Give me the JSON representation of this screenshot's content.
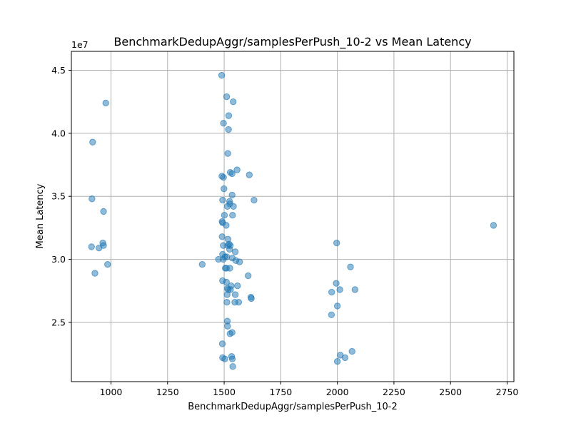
{
  "chart_data": {
    "type": "scatter",
    "title": "BenchmarkDedupAggr/samplesPerPush_10-2 vs Mean Latency",
    "xlabel": "BenchmarkDedupAggr/samplesPerPush_10-2",
    "ylabel": "Mean Latency",
    "y_offset_label": "1e7",
    "xlim": [
      825,
      2780
    ],
    "ylim": [
      20300000,
      46500000
    ],
    "xticks": [
      1000,
      1250,
      1500,
      1750,
      2000,
      2250,
      2500,
      2750
    ],
    "yticks": [
      25000000,
      30000000,
      35000000,
      40000000,
      45000000
    ],
    "ytick_labels": [
      "2.5",
      "3.0",
      "3.5",
      "4.0",
      "4.5"
    ],
    "grid": true,
    "color": "#1f77b4",
    "points": [
      {
        "x": 977,
        "y": 42400000
      },
      {
        "x": 919,
        "y": 39300000
      },
      {
        "x": 916,
        "y": 34800000
      },
      {
        "x": 967,
        "y": 33800000
      },
      {
        "x": 964,
        "y": 31300000
      },
      {
        "x": 967,
        "y": 31100000
      },
      {
        "x": 914,
        "y": 31000000
      },
      {
        "x": 947,
        "y": 30900000
      },
      {
        "x": 985,
        "y": 29600000
      },
      {
        "x": 929,
        "y": 28900000
      },
      {
        "x": 1489,
        "y": 44600000
      },
      {
        "x": 1511,
        "y": 42900000
      },
      {
        "x": 1540,
        "y": 42500000
      },
      {
        "x": 1520,
        "y": 41400000
      },
      {
        "x": 1497,
        "y": 40800000
      },
      {
        "x": 1519,
        "y": 40300000
      },
      {
        "x": 1516,
        "y": 38400000
      },
      {
        "x": 1557,
        "y": 37100000
      },
      {
        "x": 1527,
        "y": 36900000
      },
      {
        "x": 1611,
        "y": 36700000
      },
      {
        "x": 1535,
        "y": 36800000
      },
      {
        "x": 1490,
        "y": 36600000
      },
      {
        "x": 1497,
        "y": 36500000
      },
      {
        "x": 1499,
        "y": 35600000
      },
      {
        "x": 1535,
        "y": 35100000
      },
      {
        "x": 1632,
        "y": 34700000
      },
      {
        "x": 1493,
        "y": 34700000
      },
      {
        "x": 1524,
        "y": 34600000
      },
      {
        "x": 1525,
        "y": 34400000
      },
      {
        "x": 1514,
        "y": 34200000
      },
      {
        "x": 1541,
        "y": 34200000
      },
      {
        "x": 1501,
        "y": 33500000
      },
      {
        "x": 1537,
        "y": 33500000
      },
      {
        "x": 1491,
        "y": 33000000
      },
      {
        "x": 1493,
        "y": 32900000
      },
      {
        "x": 1509,
        "y": 32700000
      },
      {
        "x": 1491,
        "y": 31800000
      },
      {
        "x": 1517,
        "y": 31600000
      },
      {
        "x": 1496,
        "y": 31100000
      },
      {
        "x": 1516,
        "y": 31100000
      },
      {
        "x": 1522,
        "y": 31200000
      },
      {
        "x": 1527,
        "y": 31100000
      },
      {
        "x": 1524,
        "y": 30800000
      },
      {
        "x": 1549,
        "y": 30600000
      },
      {
        "x": 1493,
        "y": 30400000
      },
      {
        "x": 1503,
        "y": 30200000
      },
      {
        "x": 1496,
        "y": 30000000
      },
      {
        "x": 1511,
        "y": 30200000
      },
      {
        "x": 1536,
        "y": 30100000
      },
      {
        "x": 1475,
        "y": 30000000
      },
      {
        "x": 1552,
        "y": 29900000
      },
      {
        "x": 1568,
        "y": 29800000
      },
      {
        "x": 1403,
        "y": 29600000
      },
      {
        "x": 1505,
        "y": 29300000
      },
      {
        "x": 1510,
        "y": 29300000
      },
      {
        "x": 1525,
        "y": 29300000
      },
      {
        "x": 1606,
        "y": 28700000
      },
      {
        "x": 1493,
        "y": 28300000
      },
      {
        "x": 1510,
        "y": 28200000
      },
      {
        "x": 1531,
        "y": 27900000
      },
      {
        "x": 1559,
        "y": 27900000
      },
      {
        "x": 1514,
        "y": 27700000
      },
      {
        "x": 1518,
        "y": 27600000
      },
      {
        "x": 1528,
        "y": 27600000
      },
      {
        "x": 1513,
        "y": 27200000
      },
      {
        "x": 1549,
        "y": 27200000
      },
      {
        "x": 1618,
        "y": 27000000
      },
      {
        "x": 1620,
        "y": 26900000
      },
      {
        "x": 1512,
        "y": 26600000
      },
      {
        "x": 1547,
        "y": 26600000
      },
      {
        "x": 1564,
        "y": 26600000
      },
      {
        "x": 1514,
        "y": 25100000
      },
      {
        "x": 1515,
        "y": 24700000
      },
      {
        "x": 1535,
        "y": 24200000
      },
      {
        "x": 1526,
        "y": 24100000
      },
      {
        "x": 1492,
        "y": 23300000
      },
      {
        "x": 1533,
        "y": 22300000
      },
      {
        "x": 1493,
        "y": 22200000
      },
      {
        "x": 1503,
        "y": 22100000
      },
      {
        "x": 1536,
        "y": 22100000
      },
      {
        "x": 1538,
        "y": 21500000
      },
      {
        "x": 1997,
        "y": 31300000
      },
      {
        "x": 2058,
        "y": 29400000
      },
      {
        "x": 1995,
        "y": 28100000
      },
      {
        "x": 2011,
        "y": 27600000
      },
      {
        "x": 2078,
        "y": 27600000
      },
      {
        "x": 1975,
        "y": 27400000
      },
      {
        "x": 2000,
        "y": 26300000
      },
      {
        "x": 1974,
        "y": 25600000
      },
      {
        "x": 2065,
        "y": 22700000
      },
      {
        "x": 2013,
        "y": 22400000
      },
      {
        "x": 2034,
        "y": 22200000
      },
      {
        "x": 2000,
        "y": 21900000
      },
      {
        "x": 2690,
        "y": 32700000
      }
    ]
  }
}
